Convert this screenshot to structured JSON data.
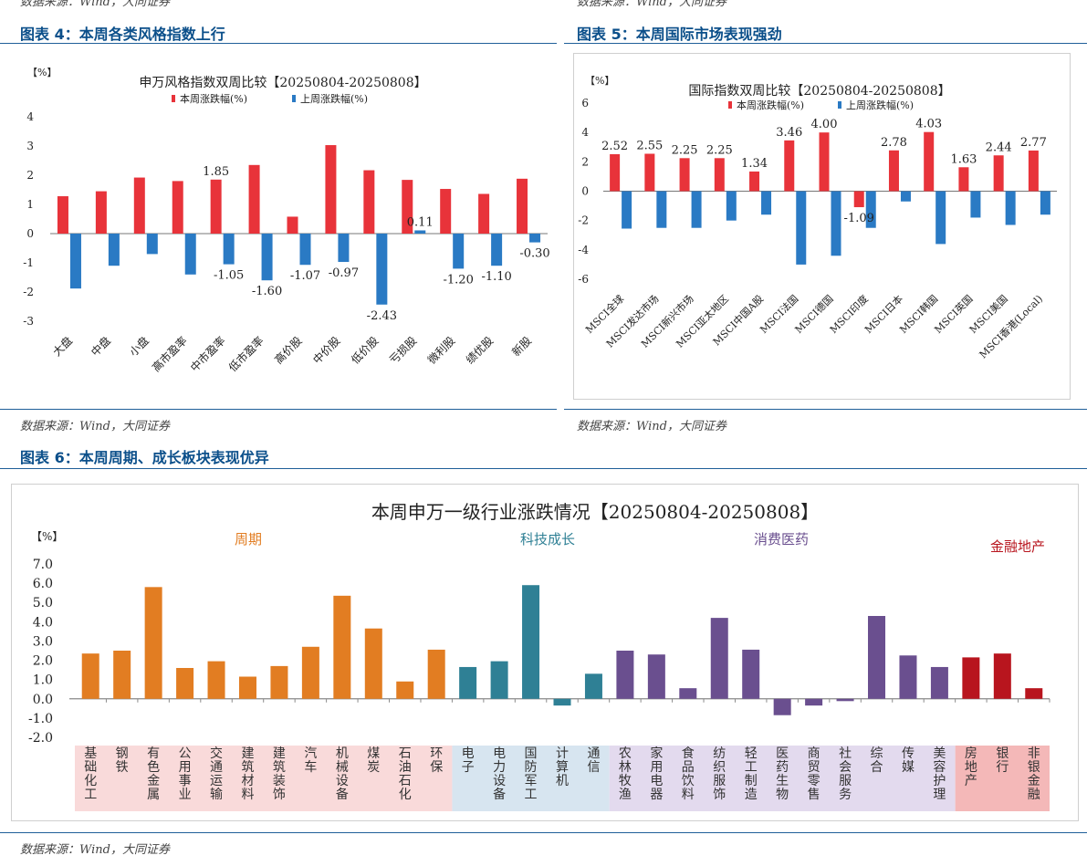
{
  "page": {
    "top_sources": [
      "数据来源：Wind，大同证券",
      "数据来源：Wind，大同证券"
    ],
    "fig4_title": "图表 4：本周各类风格指数上行",
    "fig5_title": "图表 5：本周国际市场表现强劲",
    "mid_sources": [
      "数据来源：Wind，大同证券",
      "数据来源：Wind，大同证券"
    ],
    "fig6_title": "图表 6：本周周期、成长板块表现优异",
    "bottom_source": "数据来源：Wind，大同证券"
  },
  "colors": {
    "red": "#e8333a",
    "blue": "#2a7ac4",
    "cyclical": "#e27d22",
    "tech": "#2f8095",
    "consumer": "#6a4f8f",
    "finance": "#b8151e",
    "bg_cyclical": "#f9dada",
    "bg_tech": "#d7e5f0",
    "bg_consumer": "#e3daee",
    "bg_finance": "#f4b8b8"
  },
  "chart_data": [
    {
      "id": "style",
      "type": "bar",
      "title": "申万风格指数双周比较【20250804-20250808】",
      "unit_label": "【%】",
      "legend": [
        "本周涨跌幅(%)",
        "上周涨跌幅(%)"
      ],
      "categories": [
        "大盘",
        "中盘",
        "小盘",
        "高市盈率",
        "中市盈率",
        "低市盈率",
        "高价股",
        "中价股",
        "低价股",
        "亏损股",
        "微利股",
        "绩优股",
        "新股"
      ],
      "series": [
        {
          "name": "本周涨跌幅(%)",
          "values": [
            1.28,
            1.45,
            1.92,
            1.8,
            1.85,
            2.35,
            0.58,
            3.03,
            2.17,
            1.84,
            1.53,
            1.36,
            1.88
          ]
        },
        {
          "name": "上周涨跌幅(%)",
          "values": [
            -1.88,
            -1.1,
            -0.7,
            -1.4,
            -1.05,
            -1.6,
            -1.07,
            -0.97,
            -2.43,
            0.11,
            -1.2,
            -1.1,
            -0.3
          ]
        }
      ],
      "labels": [
        {
          "index": 4,
          "series": 0,
          "text": "1.85"
        },
        {
          "index": 4,
          "series": 1,
          "text": "-1.05"
        },
        {
          "index": 5,
          "series": 1,
          "text": "-1.60"
        },
        {
          "index": 6,
          "series": 1,
          "text": "-1.07"
        },
        {
          "index": 7,
          "series": 1,
          "text": "-0.97"
        },
        {
          "index": 8,
          "series": 1,
          "text": "-2.43"
        },
        {
          "index": 9,
          "series": 1,
          "text": "0.11"
        },
        {
          "index": 10,
          "series": 1,
          "text": "-1.20"
        },
        {
          "index": 11,
          "series": 1,
          "text": "-1.10"
        },
        {
          "index": 12,
          "series": 1,
          "text": "-0.30"
        }
      ],
      "ylim": [
        -3,
        4
      ],
      "yticks": [
        "-3",
        "-2",
        "-1",
        "0",
        "1",
        "2",
        "3",
        "4"
      ]
    },
    {
      "id": "intl",
      "type": "bar",
      "title": "国际指数双周比较【20250804-20250808】",
      "unit_label": "【%】",
      "legend": [
        "本周涨跌幅(%)",
        "上周涨跌幅(%)"
      ],
      "categories": [
        "MSCI全球",
        "MSCI发达市场",
        "MSCI新兴市场",
        "MSCI亚太地区",
        "MSCI中国A股",
        "MSCI法国",
        "MSCI德国",
        "MSCI印度",
        "MSCI日本",
        "MSCI韩国",
        "MSCI英国",
        "MSCI美国",
        "MSCI香港(Local)"
      ],
      "series": [
        {
          "name": "本周涨跌幅(%)",
          "values": [
            2.52,
            2.55,
            2.25,
            2.25,
            1.34,
            3.46,
            4.0,
            -1.09,
            2.78,
            4.03,
            1.63,
            2.44,
            2.77
          ]
        },
        {
          "name": "上周涨跌幅(%)",
          "values": [
            -2.55,
            -2.5,
            -2.5,
            -2.0,
            -1.6,
            -5.0,
            -4.4,
            -2.5,
            -0.7,
            -3.6,
            -1.8,
            -2.3,
            -1.6
          ]
        }
      ],
      "labels": [
        {
          "index": 0,
          "series": 0,
          "text": "2.52"
        },
        {
          "index": 1,
          "series": 0,
          "text": "2.55"
        },
        {
          "index": 2,
          "series": 0,
          "text": "2.25"
        },
        {
          "index": 3,
          "series": 0,
          "text": "2.25"
        },
        {
          "index": 4,
          "series": 0,
          "text": "1.34"
        },
        {
          "index": 5,
          "series": 0,
          "text": "3.46"
        },
        {
          "index": 6,
          "series": 0,
          "text": "4.00"
        },
        {
          "index": 7,
          "series": 0,
          "text": "-1.09"
        },
        {
          "index": 8,
          "series": 0,
          "text": "2.78"
        },
        {
          "index": 9,
          "series": 0,
          "text": "4.03"
        },
        {
          "index": 10,
          "series": 0,
          "text": "1.63"
        },
        {
          "index": 11,
          "series": 0,
          "text": "2.44"
        },
        {
          "index": 12,
          "series": 0,
          "text": "2.77"
        }
      ],
      "ylim": [
        -6,
        6
      ],
      "yticks": [
        "-6",
        "-4",
        "-2",
        "0",
        "2",
        "4",
        "6"
      ]
    },
    {
      "id": "industry",
      "type": "bar",
      "title": "本周申万一级行业涨跌情况【20250804-20250808】",
      "unit_label": "【%】",
      "ylim": [
        -2,
        7
      ],
      "yticks": [
        "-2.0",
        "-1.0",
        "0.0",
        "1.0",
        "2.0",
        "3.0",
        "4.0",
        "5.0",
        "6.0",
        "7.0"
      ],
      "groups": [
        {
          "name": "周期",
          "color_key": "cyclical",
          "bg_key": "bg_cyclical",
          "start": 0,
          "count": 12
        },
        {
          "name": "科技成长",
          "color_key": "tech",
          "bg_key": "bg_tech",
          "start": 12,
          "count": 5
        },
        {
          "name": "消费医药",
          "color_key": "consumer",
          "bg_key": "bg_consumer",
          "start": 17,
          "count": 11
        },
        {
          "name": "金融地产",
          "color_key": "finance",
          "bg_key": "bg_finance",
          "start": 28,
          "count": 3
        }
      ],
      "categories": [
        "基础化工",
        "钢铁",
        "有色金属",
        "公用事业",
        "交通运输",
        "建筑材料",
        "建筑装饰",
        "汽车",
        "机械设备",
        "煤炭",
        "石油石化",
        "环保",
        "电子",
        "电力设备",
        "国防军工",
        "计算机",
        "通信",
        "农林牧渔",
        "家用电器",
        "食品饮料",
        "纺织服饰",
        "轻工制造",
        "医药生物",
        "商贸零售",
        "社会服务",
        "综合",
        "传媒",
        "美容护理",
        "房地产",
        "银行",
        "非银金融"
      ],
      "values": [
        2.35,
        2.5,
        5.8,
        1.6,
        1.95,
        1.15,
        1.7,
        2.7,
        5.35,
        3.65,
        0.9,
        2.55,
        1.65,
        1.95,
        5.9,
        -0.35,
        1.3,
        2.5,
        2.3,
        0.55,
        4.2,
        2.55,
        -0.85,
        -0.35,
        -0.12,
        4.3,
        2.25,
        1.65,
        2.15,
        2.35,
        0.55
      ]
    }
  ]
}
